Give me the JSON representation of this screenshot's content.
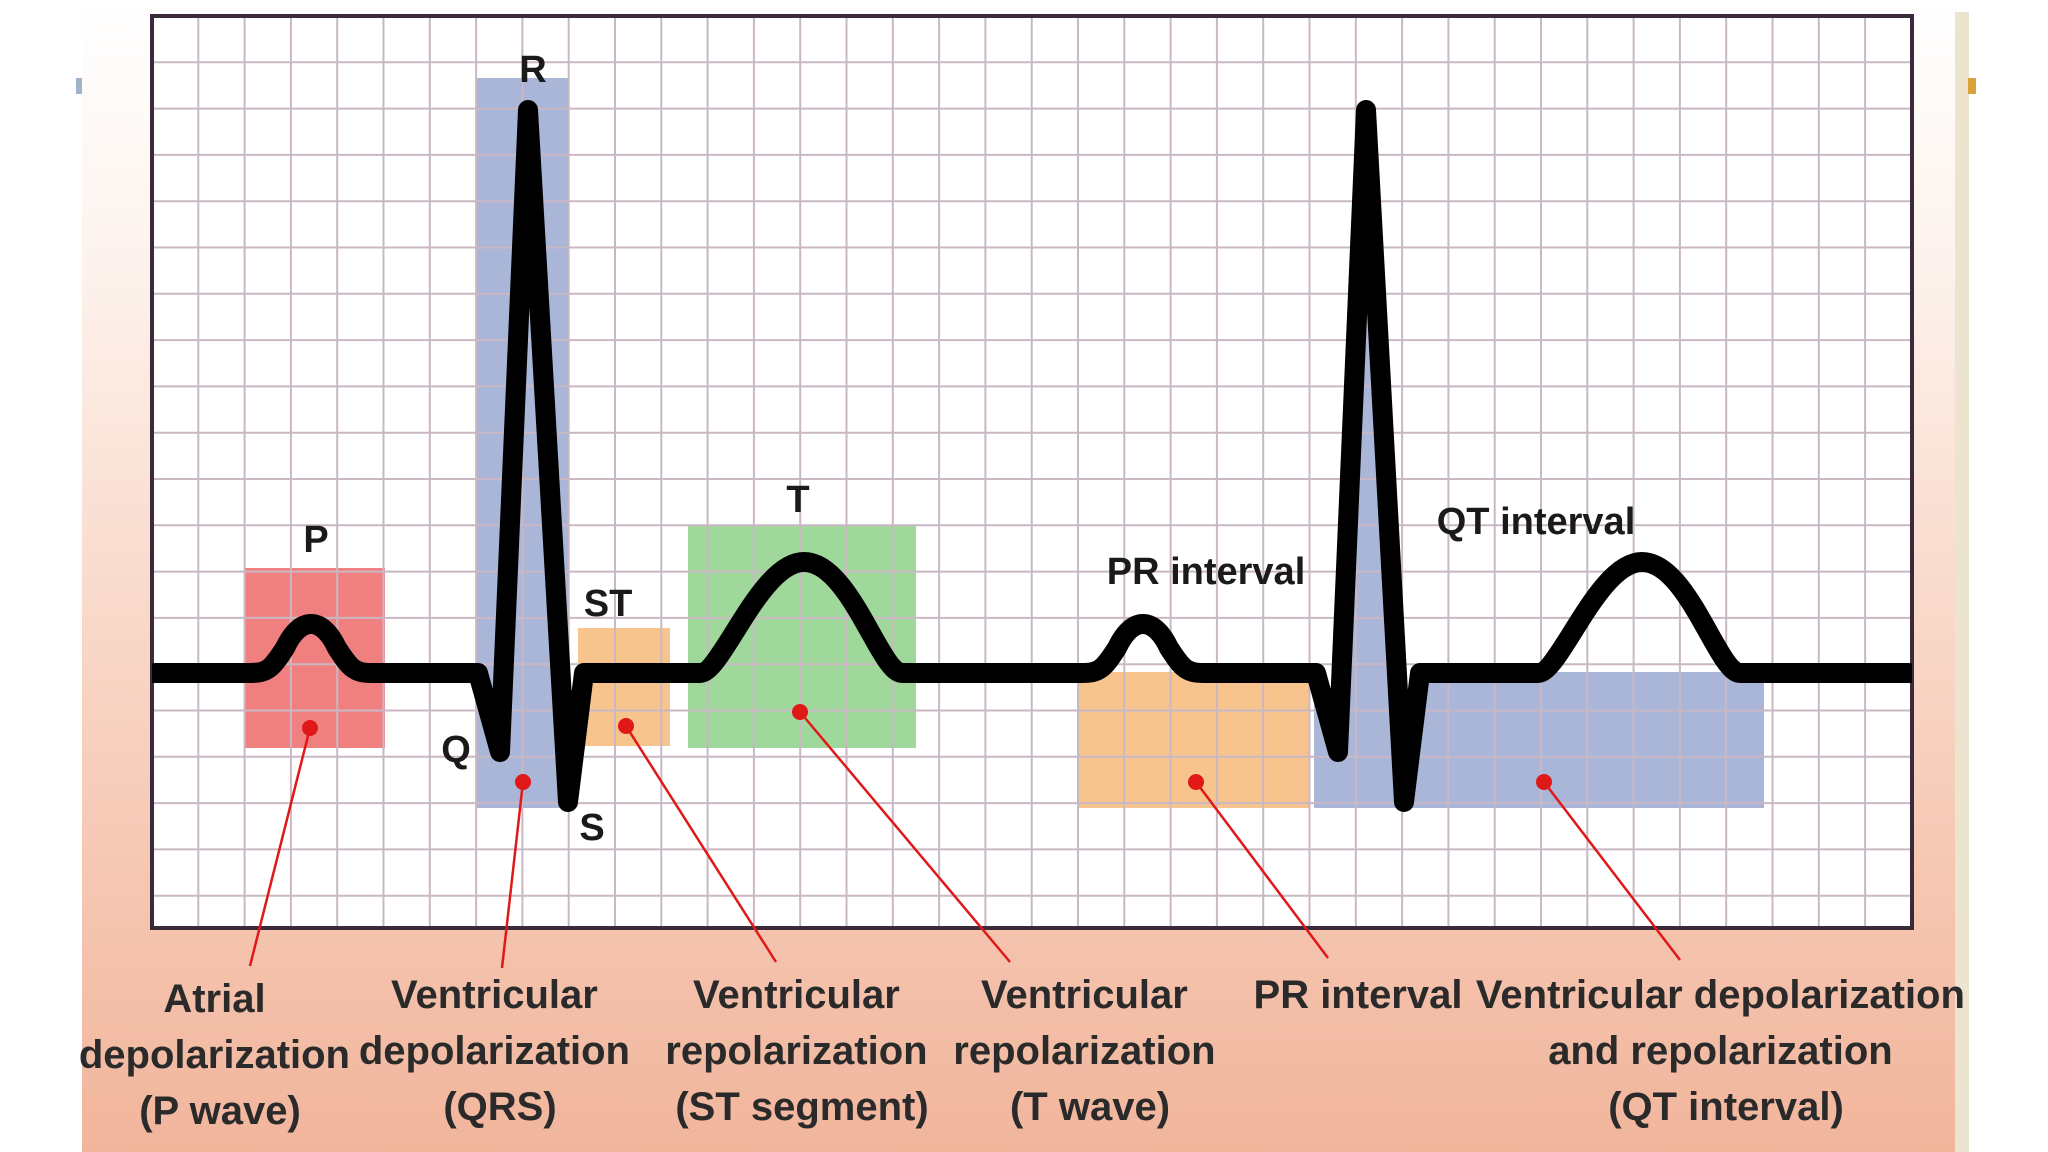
{
  "wave_labels": {
    "p": "P",
    "r": "R",
    "q": "Q",
    "s": "S",
    "st": "ST",
    "t": "T",
    "pr_interval": "PR interval",
    "qt_interval": "QT interval"
  },
  "captions": [
    {
      "key": "atrial",
      "lines": [
        "Atrial",
        "depolarization",
        "(P wave)"
      ]
    },
    {
      "key": "qrs",
      "lines": [
        "Ventricular",
        "depolarization",
        "(QRS)"
      ]
    },
    {
      "key": "st",
      "lines": [
        "Ventricular",
        "repolarization",
        "(ST segment)"
      ]
    },
    {
      "key": "t",
      "lines": [
        "Ventricular",
        "repolarization",
        "(T wave)"
      ]
    },
    {
      "key": "pr",
      "lines": [
        "PR interval"
      ]
    },
    {
      "key": "qt",
      "lines": [
        "Ventricular depolarization",
        "and repolarization",
        "(QT interval)"
      ]
    }
  ],
  "colors": {
    "p_region": "#f08080",
    "qrs_region": "#a9b6d8",
    "st_region": "#f8c48e",
    "t_region": "#9fd89a",
    "pr_region": "#f8c48e",
    "qt_region": "#a9b6d8",
    "trace": "#000000",
    "grid": "#c9b8c4",
    "frame": "#3a2a3a",
    "leader": "#e01818",
    "background_bottom": "#f1b59c"
  }
}
